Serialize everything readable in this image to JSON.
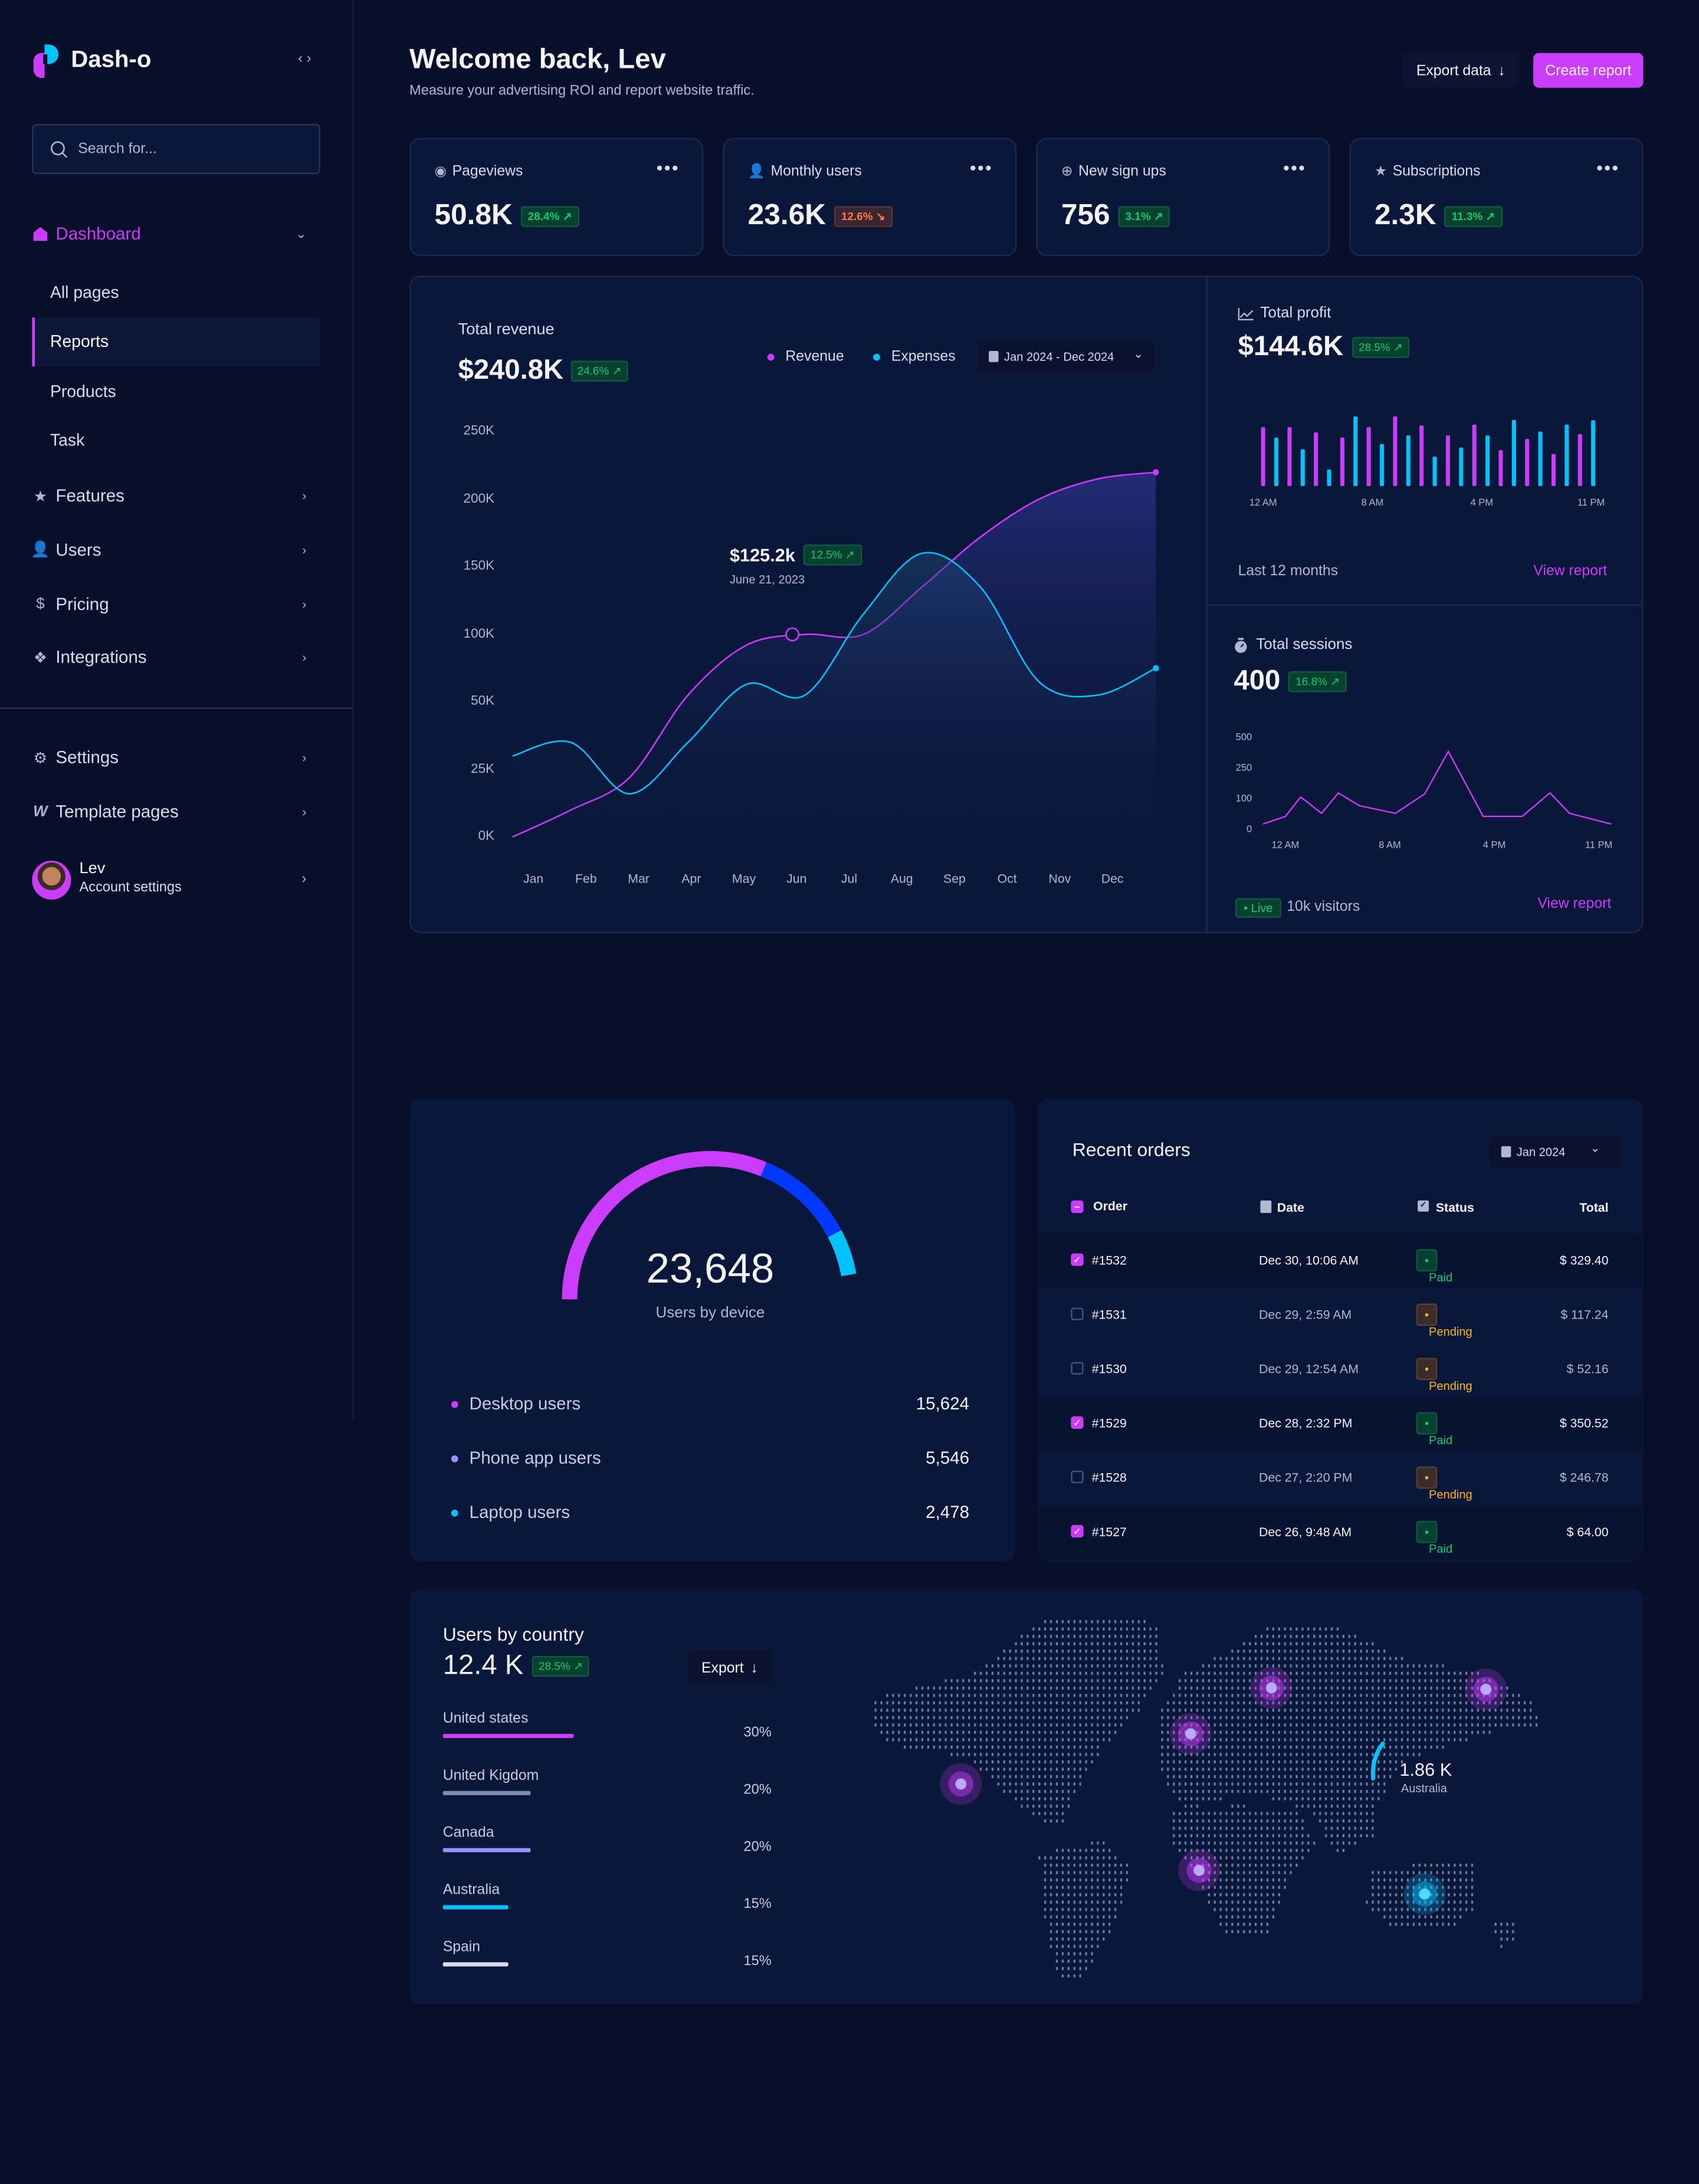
{
  "app": {
    "name": "Dash-o"
  },
  "colors": {
    "accent": "#cb3cff",
    "cyan": "#00c2ff",
    "blue": "#0038ff",
    "lavender": "#9a91fb",
    "green": "#14ca74",
    "orange": "#fdb52a"
  },
  "sidebar": {
    "search_placeholder": "Search for...",
    "dashboard": {
      "label": "Dashboard",
      "icon": "home-icon",
      "expanded": true
    },
    "sub_items": [
      {
        "label": "All pages",
        "selected": false
      },
      {
        "label": "Reports",
        "selected": true
      },
      {
        "label": "Products",
        "selected": false
      },
      {
        "label": "Task",
        "selected": false
      }
    ],
    "items": [
      {
        "label": "Features",
        "icon": "star-icon"
      },
      {
        "label": "Users",
        "icon": "user-icon"
      },
      {
        "label": "Pricing",
        "icon": "dollar-icon"
      },
      {
        "label": "Integrations",
        "icon": "puzzle-icon"
      }
    ],
    "bottom_items": [
      {
        "label": "Settings",
        "icon": "gear-icon"
      },
      {
        "label": "Template pages",
        "icon": "template-icon"
      }
    ],
    "account": {
      "name": "Lev",
      "subtitle": "Account settings"
    }
  },
  "header": {
    "title": "Welcome back, Lev",
    "subtitle": "Measure your advertising ROI and report website traffic.",
    "export_label": "Export data",
    "create_label": "Create report"
  },
  "stats": [
    {
      "label": "Pageviews",
      "icon": "eye-icon",
      "value": "50.8K",
      "change": "28.4%",
      "trend": "up"
    },
    {
      "label": "Monthly users",
      "icon": "user-icon",
      "value": "23.6K",
      "change": "12.6%",
      "trend": "down"
    },
    {
      "label": "New sign ups",
      "icon": "plus-circle-icon",
      "value": "756",
      "change": "3.1%",
      "trend": "up"
    },
    {
      "label": "Subscriptions",
      "icon": "star-icon",
      "value": "2.3K",
      "change": "11.3%",
      "trend": "up"
    }
  ],
  "revenue": {
    "label": "Total revenue",
    "value": "$240.8K",
    "change": "24.6%",
    "date_range": "Jan 2024 - Dec 2024",
    "tooltip": {
      "value": "$125.2k",
      "change": "12.5%",
      "date": "June 21, 2023"
    }
  },
  "profit": {
    "label": "Total profit",
    "value": "$144.6K",
    "change": "28.5%",
    "period": "Last 12 months",
    "link": "View report"
  },
  "sessions": {
    "label": "Total sessions",
    "value": "400",
    "change": "16.8%",
    "live": "Live",
    "visitors": "10k visitors",
    "link": "View report"
  },
  "chart_data": [
    {
      "type": "line",
      "categories": [
        "Jan",
        "Feb",
        "Mar",
        "Apr",
        "May",
        "Jun",
        "Jul",
        "Aug",
        "Sep",
        "Oct",
        "Nov",
        "Dec"
      ],
      "y_ticks": [
        "0K",
        "25K",
        "50K",
        "100K",
        "150K",
        "200K",
        "250K"
      ],
      "y_tick_values": [
        0,
        25,
        50,
        100,
        150,
        200,
        250
      ],
      "ylim": [
        0,
        250
      ],
      "legend_placement": "top-right",
      "series": [
        {
          "name": "Revenue",
          "color": "#cb3cff",
          "values": [
            0,
            10,
            22,
            55,
            92,
            100,
            100,
            135,
            172,
            200,
            215,
            220
          ]
        },
        {
          "name": "Expenses",
          "color": "#00c2ff",
          "values": [
            30,
            35,
            16,
            35,
            63,
            55,
            115,
            160,
            135,
            65,
            55,
            75
          ]
        }
      ]
    },
    {
      "type": "bar",
      "x_ticks": [
        "12 AM",
        "8 AM",
        "4 PM",
        "11 PM"
      ],
      "colors": [
        "#cb3cff",
        "#00c2ff"
      ],
      "values": [
        136,
        112,
        136,
        85,
        124,
        38,
        112,
        161,
        136,
        97,
        161,
        117,
        140,
        68,
        117,
        89,
        142,
        117,
        83,
        153,
        109,
        126,
        74,
        142,
        120,
        152
      ]
    },
    {
      "type": "line",
      "x_ticks": [
        "12 AM",
        "8 AM",
        "4 PM",
        "11 PM"
      ],
      "y_ticks": [
        "0",
        "100",
        "250",
        "500"
      ],
      "y_tick_values": [
        0,
        100,
        250,
        500
      ],
      "color": "#cb3cff",
      "values": [
        15,
        40,
        105,
        50,
        125,
        75,
        50,
        120,
        380,
        40,
        40,
        125,
        50,
        15
      ]
    },
    {
      "type": "pie",
      "title": "23,648",
      "subtitle": "Users by device",
      "series": [
        {
          "name": "Desktop users",
          "value": 15624,
          "display": "15,624",
          "color": "#cb3cff"
        },
        {
          "name": "Phone app users",
          "value": 5546,
          "display": "5,546",
          "color": "#0038ff"
        },
        {
          "name": "Laptop users",
          "value": 2478,
          "display": "2,478",
          "color": "#00c2ff"
        }
      ]
    }
  ],
  "devices": {
    "legend_dot_colors": [
      "#cb3cff",
      "#9a91fb",
      "#00c2ff"
    ]
  },
  "orders": {
    "title": "Recent orders",
    "month": "Jan 2024",
    "columns": [
      "Order",
      "Date",
      "Status",
      "Total"
    ],
    "rows": [
      {
        "id": "#1532",
        "date": "Dec 30, 10:06 AM",
        "status": "Paid",
        "total": "$ 329.40",
        "checked": true
      },
      {
        "id": "#1531",
        "date": "Dec 29, 2:59 AM",
        "status": "Pending",
        "total": "$ 117.24",
        "checked": false
      },
      {
        "id": "#1530",
        "date": "Dec 29, 12:54 AM",
        "status": "Pending",
        "total": "$ 52.16",
        "checked": false
      },
      {
        "id": "#1529",
        "date": "Dec 28, 2:32 PM",
        "status": "Paid",
        "total": "$ 350.52",
        "checked": true
      },
      {
        "id": "#1528",
        "date": "Dec 27, 2:20 PM",
        "status": "Pending",
        "total": "$ 246.78",
        "checked": false
      },
      {
        "id": "#1527",
        "date": "Dec 26, 9:48 AM",
        "status": "Paid",
        "total": "$ 64.00",
        "checked": true
      }
    ]
  },
  "countries": {
    "title": "Users by country",
    "value": "12.4 K",
    "change": "28.5%",
    "export_label": "Export",
    "items": [
      {
        "name": "United states",
        "percent": "30%",
        "share": 30,
        "color": "#cb3cff"
      },
      {
        "name": "United Kigdom",
        "percent": "20%",
        "share": 20,
        "color": "#7f8bb0"
      },
      {
        "name": "Canada",
        "percent": "20%",
        "share": 20,
        "color": "#9a91fb"
      },
      {
        "name": "Australia",
        "percent": "15%",
        "share": 15,
        "color": "#00c2ff"
      },
      {
        "name": "Spain",
        "percent": "15%",
        "share": 15,
        "color": "#d8dbe8"
      }
    ],
    "map_callout": {
      "value": "1.86 K",
      "label": "Australia"
    }
  }
}
